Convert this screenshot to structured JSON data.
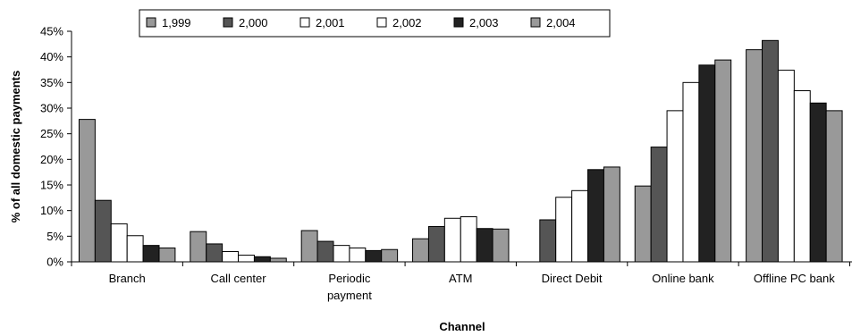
{
  "chart_data": {
    "type": "bar",
    "xlabel": "Channel",
    "ylabel": "% of all domestic payments",
    "ylim": [
      0,
      45
    ],
    "y_tick_step": 5,
    "y_tick_format": "percent",
    "grid": false,
    "legend_position": "top",
    "categories": [
      [
        "Branch"
      ],
      [
        "Call center"
      ],
      [
        "Periodic",
        "payment"
      ],
      [
        "ATM"
      ],
      [
        "Direct Debit"
      ],
      [
        "Online bank"
      ],
      [
        "Offline PC bank"
      ]
    ],
    "series": [
      {
        "name": "1,999",
        "color": "#999999",
        "values": [
          27.8,
          5.9,
          6.1,
          4.5,
          null,
          14.8,
          41.4
        ]
      },
      {
        "name": "2,000",
        "color": "#555555",
        "values": [
          12.0,
          3.5,
          4.0,
          6.9,
          8.2,
          22.4,
          43.2
        ]
      },
      {
        "name": "2,001",
        "color": "#ffffff",
        "values": [
          7.4,
          2.0,
          3.2,
          8.5,
          12.6,
          29.5,
          37.4
        ]
      },
      {
        "name": "2,002",
        "color": "#ffffff",
        "values": [
          5.1,
          1.3,
          2.7,
          8.8,
          13.9,
          35.0,
          33.4
        ]
      },
      {
        "name": "2,003",
        "color": "#222222",
        "values": [
          3.2,
          1.0,
          2.2,
          6.5,
          18.0,
          38.4,
          31.0
        ]
      },
      {
        "name": "2,004",
        "color": "#999999",
        "values": [
          2.7,
          0.7,
          2.4,
          6.4,
          18.5,
          39.4,
          29.5
        ]
      }
    ]
  }
}
